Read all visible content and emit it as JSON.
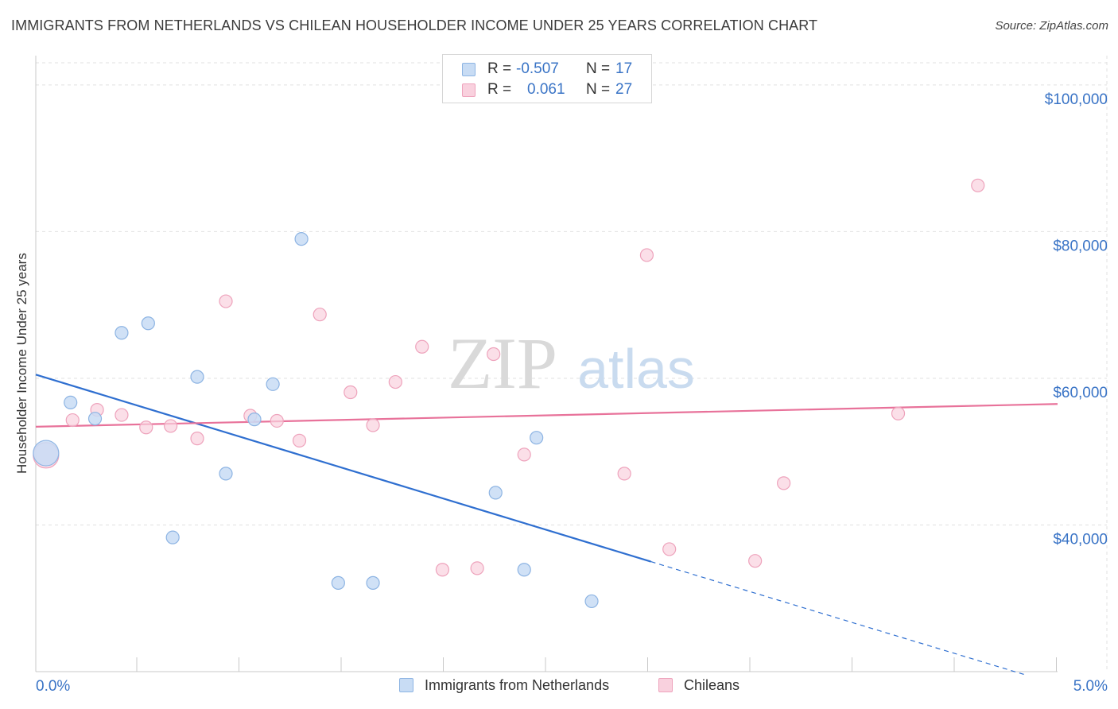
{
  "title": "IMMIGRANTS FROM NETHERLANDS VS CHILEAN HOUSEHOLDER INCOME UNDER 25 YEARS CORRELATION CHART",
  "source": "Source: ZipAtlas.com",
  "watermark": {
    "zip": "ZIP",
    "atlas": "atlas"
  },
  "colors": {
    "blue_fill": "#c8dcf4",
    "blue_stroke": "#8db4e3",
    "blue_line": "#2f6fd0",
    "pink_fill": "#f9d1de",
    "pink_stroke": "#eea3bc",
    "pink_line": "#e8729a",
    "axis_text": "#3a74c6",
    "grid": "#e0e0e0"
  },
  "legend": {
    "rows": [
      {
        "r_label": "R =",
        "r_value": "-0.507",
        "n_label": "N =",
        "n_value": "17"
      },
      {
        "r_label": "R =",
        "r_value": "0.061",
        "n_label": "N =",
        "n_value": "27"
      }
    ]
  },
  "bottom_legend": {
    "items": [
      "Immigrants from Netherlands",
      "Chileans"
    ]
  },
  "chart_data": {
    "type": "scatter",
    "title": "IMMIGRANTS FROM NETHERLANDS VS CHILEAN HOUSEHOLDER INCOME UNDER 25 YEARS CORRELATION CHART",
    "xlabel": "",
    "ylabel": "Householder Income Under 25 years",
    "xlim": [
      0,
      5
    ],
    "ylim": [
      20000,
      104000
    ],
    "x_tick_labels": [
      "0.0%",
      "5.0%"
    ],
    "y_ticks": [
      40000,
      60000,
      80000,
      100000
    ],
    "y_tick_labels": [
      "$40,000",
      "$60,000",
      "$80,000",
      "$100,000"
    ],
    "x_minor_ticks": [
      0.5,
      1.0,
      1.5,
      2.0,
      2.5,
      3.0,
      3.5,
      4.0,
      4.5,
      5.0
    ],
    "series": [
      {
        "name": "Immigrants from Netherlands",
        "r": -0.507,
        "n": 17,
        "points": [
          {
            "x": 0.05,
            "y": 49800,
            "big": true
          },
          {
            "x": 0.17,
            "y": 56700
          },
          {
            "x": 0.29,
            "y": 54500
          },
          {
            "x": 0.42,
            "y": 66200
          },
          {
            "x": 0.55,
            "y": 67500
          },
          {
            "x": 0.67,
            "y": 38300
          },
          {
            "x": 0.79,
            "y": 60200
          },
          {
            "x": 0.93,
            "y": 47000
          },
          {
            "x": 1.07,
            "y": 54400
          },
          {
            "x": 1.16,
            "y": 59200
          },
          {
            "x": 1.3,
            "y": 79000
          },
          {
            "x": 1.48,
            "y": 32100
          },
          {
            "x": 1.65,
            "y": 32100
          },
          {
            "x": 2.25,
            "y": 44400
          },
          {
            "x": 2.39,
            "y": 33900
          },
          {
            "x": 2.45,
            "y": 51900
          },
          {
            "x": 2.72,
            "y": 29600
          }
        ],
        "trend": {
          "x0": 0.0,
          "y0": 60500,
          "x1": 3.01,
          "y1": 35000,
          "dash_to_x": 4.85,
          "dash_to_y": 19500
        }
      },
      {
        "name": "Chileans",
        "r": 0.061,
        "n": 27,
        "points": [
          {
            "x": 0.05,
            "y": 49500,
            "big": true
          },
          {
            "x": 0.18,
            "y": 54300
          },
          {
            "x": 0.3,
            "y": 55700
          },
          {
            "x": 0.42,
            "y": 55000
          },
          {
            "x": 0.54,
            "y": 53300
          },
          {
            "x": 0.66,
            "y": 53500
          },
          {
            "x": 0.79,
            "y": 51800
          },
          {
            "x": 0.93,
            "y": 70500
          },
          {
            "x": 1.05,
            "y": 54900
          },
          {
            "x": 1.18,
            "y": 54200
          },
          {
            "x": 1.29,
            "y": 51500
          },
          {
            "x": 1.39,
            "y": 68700
          },
          {
            "x": 1.54,
            "y": 58100
          },
          {
            "x": 1.65,
            "y": 53600
          },
          {
            "x": 1.76,
            "y": 59500
          },
          {
            "x": 1.89,
            "y": 64300
          },
          {
            "x": 1.99,
            "y": 33900
          },
          {
            "x": 2.16,
            "y": 34100
          },
          {
            "x": 2.24,
            "y": 63300
          },
          {
            "x": 2.39,
            "y": 49600
          },
          {
            "x": 2.88,
            "y": 47000
          },
          {
            "x": 2.99,
            "y": 76800
          },
          {
            "x": 3.1,
            "y": 36700
          },
          {
            "x": 3.52,
            "y": 35100
          },
          {
            "x": 3.66,
            "y": 45700
          },
          {
            "x": 4.22,
            "y": 55200
          },
          {
            "x": 4.61,
            "y": 86300
          }
        ],
        "trend": {
          "x0": 0.0,
          "y0": 53400,
          "x1": 5.0,
          "y1": 56500
        }
      }
    ]
  }
}
